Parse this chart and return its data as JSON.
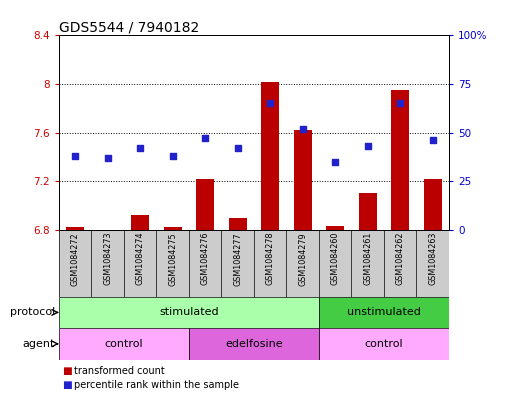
{
  "title": "GDS5544 / 7940182",
  "samples": [
    "GSM1084272",
    "GSM1084273",
    "GSM1084274",
    "GSM1084275",
    "GSM1084276",
    "GSM1084277",
    "GSM1084278",
    "GSM1084279",
    "GSM1084260",
    "GSM1084261",
    "GSM1084262",
    "GSM1084263"
  ],
  "bar_values": [
    6.82,
    6.8,
    6.92,
    6.82,
    7.22,
    6.9,
    8.02,
    7.62,
    6.83,
    7.1,
    7.95,
    7.22
  ],
  "percentile_values": [
    38,
    37,
    42,
    38,
    47,
    42,
    65,
    52,
    35,
    43,
    65,
    46
  ],
  "ylim_left": [
    6.8,
    8.4
  ],
  "ylim_right": [
    0,
    100
  ],
  "yticks_left": [
    6.8,
    7.2,
    7.6,
    8.0,
    8.4
  ],
  "yticks_right": [
    0,
    25,
    50,
    75,
    100
  ],
  "ytick_labels_left": [
    "6.8",
    "7.2",
    "7.6",
    "8",
    "8.4"
  ],
  "ytick_labels_right": [
    "0",
    "25",
    "50",
    "75",
    "100%"
  ],
  "bar_color": "#bb0000",
  "percentile_color": "#2222cc",
  "bar_bottom": 6.8,
  "protocol_groups": [
    {
      "label": "stimulated",
      "start": 0,
      "end": 8
    },
    {
      "label": "unstimulated",
      "start": 8,
      "end": 12
    }
  ],
  "agent_groups": [
    {
      "label": "control",
      "start": 0,
      "end": 4
    },
    {
      "label": "edelfosine",
      "start": 4,
      "end": 8
    },
    {
      "label": "control",
      "start": 8,
      "end": 12
    }
  ],
  "proto_color_stimulated": "#aaffaa",
  "proto_color_unstimulated": "#44cc44",
  "agent_color_control": "#ffaaff",
  "agent_color_edelfosine": "#dd66dd",
  "legend_items": [
    {
      "label": "transformed count",
      "color": "#bb0000"
    },
    {
      "label": "percentile rank within the sample",
      "color": "#2222cc"
    }
  ],
  "xtick_bg": "#cccccc",
  "title_fontsize": 10,
  "axis_color_left": "#cc0000",
  "axis_color_right": "#0000cc",
  "tick_fontsize": 7.5
}
